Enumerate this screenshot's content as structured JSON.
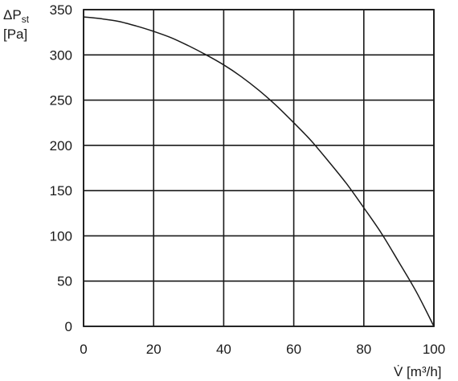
{
  "chart_data": {
    "type": "line",
    "title": "",
    "xlabel": "V̇ [m³/h]",
    "ylabel_line1": "ΔP",
    "ylabel_subscript": "st",
    "ylabel_line2": "[Pa]",
    "xlim": [
      0,
      100
    ],
    "ylim": [
      0,
      350
    ],
    "x_ticks": [
      0,
      20,
      40,
      60,
      80,
      100
    ],
    "y_ticks": [
      0,
      50,
      100,
      150,
      200,
      250,
      300,
      350
    ],
    "x_tick_labels": [
      "0",
      "20",
      "40",
      "60",
      "80",
      "100"
    ],
    "y_tick_labels": [
      "0",
      "50",
      "100",
      "150",
      "200",
      "250",
      "300",
      "350"
    ],
    "grid": true,
    "series": [
      {
        "x": [
          0,
          5,
          10,
          15,
          20,
          25,
          30,
          35,
          40,
          45,
          50,
          55,
          60,
          65,
          70,
          75,
          80,
          85,
          90,
          95,
          100
        ],
        "y": [
          342,
          340,
          337,
          332,
          326,
          319,
          310,
          300,
          289,
          276,
          261,
          244,
          225,
          205,
          182,
          158,
          131,
          103,
          71,
          38,
          0
        ],
        "color": "#1a1a1a"
      }
    ]
  }
}
